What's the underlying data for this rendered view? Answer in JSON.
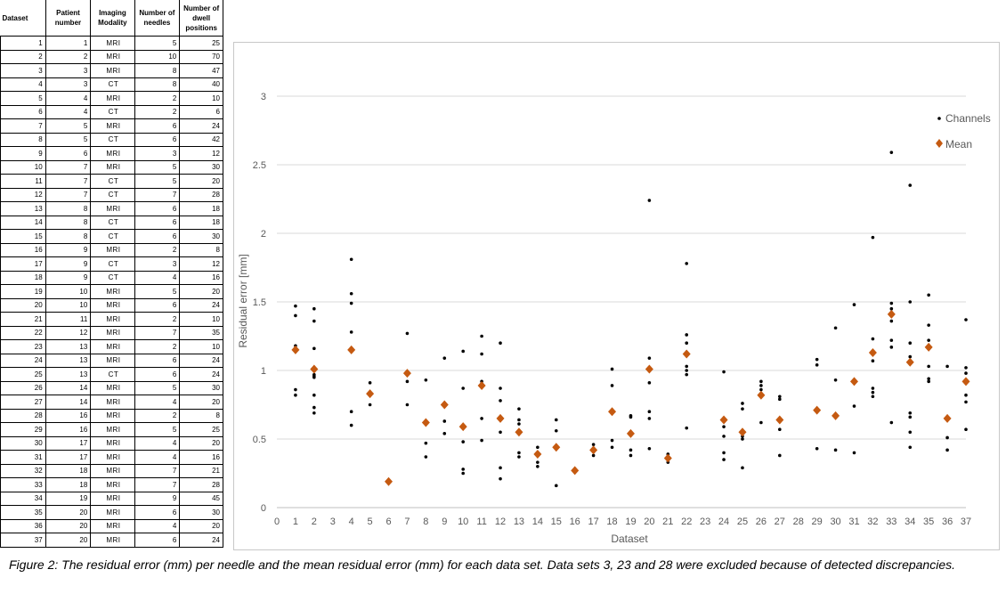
{
  "table": {
    "headers": [
      "Dataset",
      "Patient number",
      "Imaging Modality",
      "Number of needles",
      "Number of dwell positions"
    ],
    "rows": [
      [
        "1",
        "1",
        "MRI",
        "5",
        "25"
      ],
      [
        "2",
        "2",
        "MRI",
        "10",
        "70"
      ],
      [
        "3",
        "3",
        "MRI",
        "8",
        "47"
      ],
      [
        "4",
        "3",
        "CT",
        "8",
        "40"
      ],
      [
        "5",
        "4",
        "MRI",
        "2",
        "10"
      ],
      [
        "6",
        "4",
        "CT",
        "2",
        "6"
      ],
      [
        "7",
        "5",
        "MRI",
        "6",
        "24"
      ],
      [
        "8",
        "5",
        "CT",
        "6",
        "42"
      ],
      [
        "9",
        "6",
        "MRI",
        "3",
        "12"
      ],
      [
        "10",
        "7",
        "MRI",
        "5",
        "30"
      ],
      [
        "11",
        "7",
        "CT",
        "5",
        "20"
      ],
      [
        "12",
        "7",
        "CT",
        "7",
        "28"
      ],
      [
        "13",
        "8",
        "MRI",
        "6",
        "18"
      ],
      [
        "14",
        "8",
        "CT",
        "6",
        "18"
      ],
      [
        "15",
        "8",
        "CT",
        "6",
        "30"
      ],
      [
        "16",
        "9",
        "MRI",
        "2",
        "8"
      ],
      [
        "17",
        "9",
        "CT",
        "3",
        "12"
      ],
      [
        "18",
        "9",
        "CT",
        "4",
        "16"
      ],
      [
        "19",
        "10",
        "MRI",
        "5",
        "20"
      ],
      [
        "20",
        "10",
        "MRI",
        "6",
        "24"
      ],
      [
        "21",
        "11",
        "MRI",
        "2",
        "10"
      ],
      [
        "22",
        "12",
        "MRI",
        "7",
        "35"
      ],
      [
        "23",
        "13",
        "MRI",
        "2",
        "10"
      ],
      [
        "24",
        "13",
        "MRI",
        "6",
        "24"
      ],
      [
        "25",
        "13",
        "CT",
        "6",
        "24"
      ],
      [
        "26",
        "14",
        "MRI",
        "5",
        "30"
      ],
      [
        "27",
        "14",
        "MRI",
        "4",
        "20"
      ],
      [
        "28",
        "16",
        "MRI",
        "2",
        "8"
      ],
      [
        "29",
        "16",
        "MRI",
        "5",
        "25"
      ],
      [
        "30",
        "17",
        "MRI",
        "4",
        "20"
      ],
      [
        "31",
        "17",
        "MRI",
        "4",
        "16"
      ],
      [
        "32",
        "18",
        "MRI",
        "7",
        "21"
      ],
      [
        "33",
        "18",
        "MRI",
        "7",
        "28"
      ],
      [
        "34",
        "19",
        "MRI",
        "9",
        "45"
      ],
      [
        "35",
        "20",
        "MRI",
        "6",
        "30"
      ],
      [
        "36",
        "20",
        "MRI",
        "4",
        "20"
      ],
      [
        "37",
        "20",
        "MRI",
        "6",
        "24"
      ]
    ]
  },
  "chart_data": {
    "type": "scatter",
    "title": "",
    "xlabel": "Dataset",
    "ylabel": "Residual error [mm]",
    "xlim": [
      0,
      37
    ],
    "ylim": [
      0,
      3
    ],
    "xticks": [
      "0",
      "1",
      "2",
      "3",
      "4",
      "5",
      "6",
      "7",
      "8",
      "9",
      "10",
      "11",
      "12",
      "13",
      "14",
      "15",
      "16",
      "17",
      "18",
      "19",
      "20",
      "21",
      "22",
      "23",
      "24",
      "25",
      "26",
      "27",
      "28",
      "29",
      "30",
      "31",
      "32",
      "33",
      "34",
      "35",
      "36",
      "37"
    ],
    "yticks": [
      "0",
      "0.5",
      "1",
      "1.5",
      "2",
      "2.5",
      "3"
    ],
    "grid": "horizontal",
    "legend_position": "top-right",
    "series": [
      {
        "name": "Channels",
        "marker": "dot",
        "color": "#000000",
        "points": [
          [
            1,
            1.47
          ],
          [
            1,
            1.4
          ],
          [
            1,
            1.18
          ],
          [
            1,
            0.86
          ],
          [
            1,
            0.82
          ],
          [
            2,
            1.45
          ],
          [
            2,
            1.36
          ],
          [
            2,
            1.16
          ],
          [
            2,
            0.97
          ],
          [
            2,
            0.96
          ],
          [
            2,
            0.95
          ],
          [
            2,
            0.82
          ],
          [
            2,
            0.73
          ],
          [
            2,
            0.69
          ],
          [
            4,
            1.81
          ],
          [
            4,
            1.56
          ],
          [
            4,
            1.49
          ],
          [
            4,
            1.28
          ],
          [
            4,
            0.7
          ],
          [
            4,
            0.6
          ],
          [
            5,
            0.91
          ],
          [
            5,
            0.75
          ],
          [
            6,
            0.19
          ],
          [
            7,
            1.27
          ],
          [
            7,
            0.92
          ],
          [
            7,
            0.75
          ],
          [
            8,
            0.93
          ],
          [
            8,
            0.47
          ],
          [
            8,
            0.37
          ],
          [
            9,
            1.09
          ],
          [
            9,
            0.63
          ],
          [
            9,
            0.54
          ],
          [
            10,
            1.14
          ],
          [
            10,
            0.87
          ],
          [
            10,
            0.48
          ],
          [
            10,
            0.28
          ],
          [
            10,
            0.25
          ],
          [
            11,
            1.25
          ],
          [
            11,
            1.12
          ],
          [
            11,
            0.92
          ],
          [
            11,
            0.65
          ],
          [
            11,
            0.49
          ],
          [
            12,
            1.2
          ],
          [
            12,
            0.87
          ],
          [
            12,
            0.78
          ],
          [
            12,
            0.55
          ],
          [
            12,
            0.29
          ],
          [
            12,
            0.21
          ],
          [
            13,
            0.72
          ],
          [
            13,
            0.64
          ],
          [
            13,
            0.61
          ],
          [
            13,
            0.4
          ],
          [
            13,
            0.37
          ],
          [
            14,
            0.44
          ],
          [
            14,
            0.4
          ],
          [
            14,
            0.33
          ],
          [
            14,
            0.3
          ],
          [
            15,
            0.64
          ],
          [
            15,
            0.56
          ],
          [
            15,
            0.43
          ],
          [
            15,
            0.16
          ],
          [
            16,
            0.27
          ],
          [
            17,
            0.46
          ],
          [
            17,
            0.38
          ],
          [
            18,
            1.01
          ],
          [
            18,
            0.89
          ],
          [
            18,
            0.49
          ],
          [
            18,
            0.44
          ],
          [
            19,
            0.67
          ],
          [
            19,
            0.66
          ],
          [
            19,
            0.42
          ],
          [
            19,
            0.38
          ],
          [
            20,
            2.24
          ],
          [
            20,
            1.09
          ],
          [
            20,
            0.91
          ],
          [
            20,
            0.7
          ],
          [
            20,
            0.65
          ],
          [
            20,
            0.43
          ],
          [
            21,
            0.39
          ],
          [
            21,
            0.33
          ],
          [
            22,
            1.78
          ],
          [
            22,
            1.26
          ],
          [
            22,
            1.2
          ],
          [
            22,
            1.03
          ],
          [
            22,
            1.0
          ],
          [
            22,
            0.97
          ],
          [
            22,
            0.58
          ],
          [
            24,
            0.99
          ],
          [
            24,
            0.59
          ],
          [
            24,
            0.52
          ],
          [
            24,
            0.4
          ],
          [
            24,
            0.35
          ],
          [
            25,
            0.76
          ],
          [
            25,
            0.72
          ],
          [
            25,
            0.52
          ],
          [
            25,
            0.5
          ],
          [
            25,
            0.29
          ],
          [
            26,
            0.92
          ],
          [
            26,
            0.89
          ],
          [
            26,
            0.86
          ],
          [
            26,
            0.62
          ],
          [
            27,
            0.81
          ],
          [
            27,
            0.79
          ],
          [
            27,
            0.57
          ],
          [
            27,
            0.38
          ],
          [
            29,
            1.08
          ],
          [
            29,
            1.04
          ],
          [
            29,
            0.43
          ],
          [
            30,
            1.31
          ],
          [
            30,
            0.93
          ],
          [
            30,
            0.42
          ],
          [
            31,
            1.48
          ],
          [
            31,
            0.74
          ],
          [
            31,
            0.4
          ],
          [
            32,
            1.97
          ],
          [
            32,
            1.23
          ],
          [
            32,
            1.07
          ],
          [
            32,
            0.87
          ],
          [
            32,
            0.84
          ],
          [
            32,
            0.81
          ],
          [
            33,
            2.59
          ],
          [
            33,
            1.49
          ],
          [
            33,
            1.45
          ],
          [
            33,
            1.36
          ],
          [
            33,
            1.22
          ],
          [
            33,
            1.17
          ],
          [
            33,
            0.62
          ],
          [
            34,
            2.35
          ],
          [
            34,
            1.5
          ],
          [
            34,
            1.2
          ],
          [
            34,
            1.1
          ],
          [
            34,
            0.69
          ],
          [
            34,
            0.66
          ],
          [
            34,
            0.55
          ],
          [
            34,
            0.44
          ],
          [
            35,
            1.55
          ],
          [
            35,
            1.33
          ],
          [
            35,
            1.22
          ],
          [
            35,
            1.03
          ],
          [
            35,
            0.94
          ],
          [
            35,
            0.92
          ],
          [
            36,
            1.03
          ],
          [
            36,
            0.51
          ],
          [
            36,
            0.42
          ],
          [
            37,
            1.37
          ],
          [
            37,
            1.02
          ],
          [
            37,
            0.98
          ],
          [
            37,
            0.82
          ],
          [
            37,
            0.77
          ],
          [
            37,
            0.57
          ]
        ]
      },
      {
        "name": "Mean",
        "marker": "diamond",
        "color": "#C55A11",
        "points": [
          [
            1,
            1.15
          ],
          [
            2,
            1.01
          ],
          [
            4,
            1.15
          ],
          [
            5,
            0.83
          ],
          [
            6,
            0.19
          ],
          [
            7,
            0.98
          ],
          [
            8,
            0.62
          ],
          [
            9,
            0.75
          ],
          [
            10,
            0.59
          ],
          [
            11,
            0.89
          ],
          [
            12,
            0.65
          ],
          [
            13,
            0.55
          ],
          [
            14,
            0.39
          ],
          [
            15,
            0.44
          ],
          [
            16,
            0.27
          ],
          [
            17,
            0.42
          ],
          [
            18,
            0.7
          ],
          [
            19,
            0.54
          ],
          [
            20,
            1.01
          ],
          [
            21,
            0.36
          ],
          [
            22,
            1.12
          ],
          [
            24,
            0.64
          ],
          [
            25,
            0.55
          ],
          [
            26,
            0.82
          ],
          [
            27,
            0.64
          ],
          [
            29,
            0.71
          ],
          [
            30,
            0.67
          ],
          [
            31,
            0.92
          ],
          [
            32,
            1.13
          ],
          [
            33,
            1.41
          ],
          [
            34,
            1.06
          ],
          [
            35,
            1.17
          ],
          [
            36,
            0.65
          ],
          [
            37,
            0.92
          ]
        ]
      }
    ]
  },
  "caption": "Figure 2: The residual error (mm) per needle and the mean residual error (mm) for each data set. Data sets 3, 23 and 28 were excluded because of detected discrepancies."
}
